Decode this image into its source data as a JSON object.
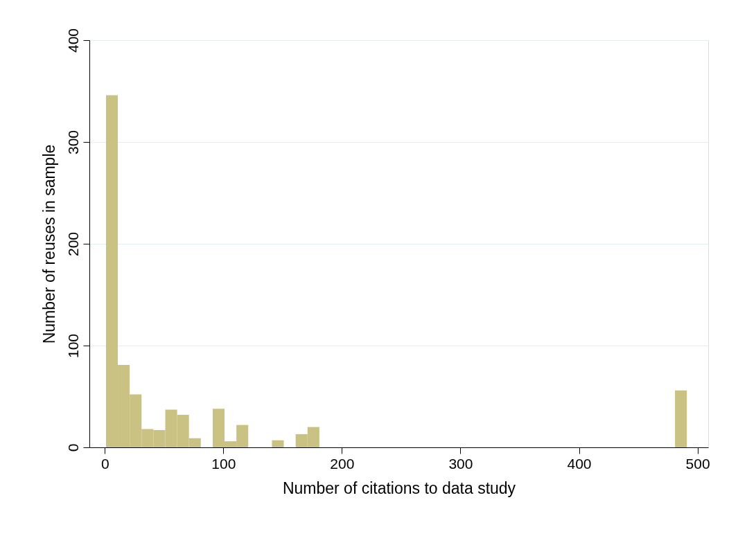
{
  "chart_data": {
    "type": "histogram",
    "xlabel": "Number of citations to data study",
    "ylabel": "Number of reuses in sample",
    "bins": [
      1,
      11,
      21,
      31,
      41,
      51,
      61,
      71,
      81,
      91,
      101,
      111,
      121,
      131,
      141,
      151,
      161,
      171,
      181,
      191,
      201,
      211,
      221,
      231,
      241,
      251,
      261,
      271,
      281,
      291,
      301,
      311,
      321,
      331,
      341,
      351,
      361,
      371,
      381,
      391,
      401,
      411,
      421,
      431,
      441,
      451,
      461,
      471,
      481,
      491
    ],
    "values": [
      346,
      81,
      52,
      18,
      17,
      37,
      32,
      9,
      0,
      38,
      6,
      22,
      0,
      0,
      7,
      0,
      13,
      20,
      0,
      0,
      0,
      0,
      0,
      0,
      0,
      0,
      0,
      0,
      0,
      0,
      0,
      0,
      0,
      0,
      0,
      0,
      0,
      0,
      0,
      0,
      0,
      0,
      0,
      0,
      0,
      0,
      0,
      0,
      56
    ],
    "color": "#c9c282",
    "xlim": [
      -13,
      509
    ],
    "ylim": [
      0,
      400
    ],
    "xticks": [
      0,
      100,
      200,
      300,
      400,
      500
    ],
    "yticks": [
      0,
      100,
      200,
      300,
      400
    ],
    "grid": "y"
  }
}
